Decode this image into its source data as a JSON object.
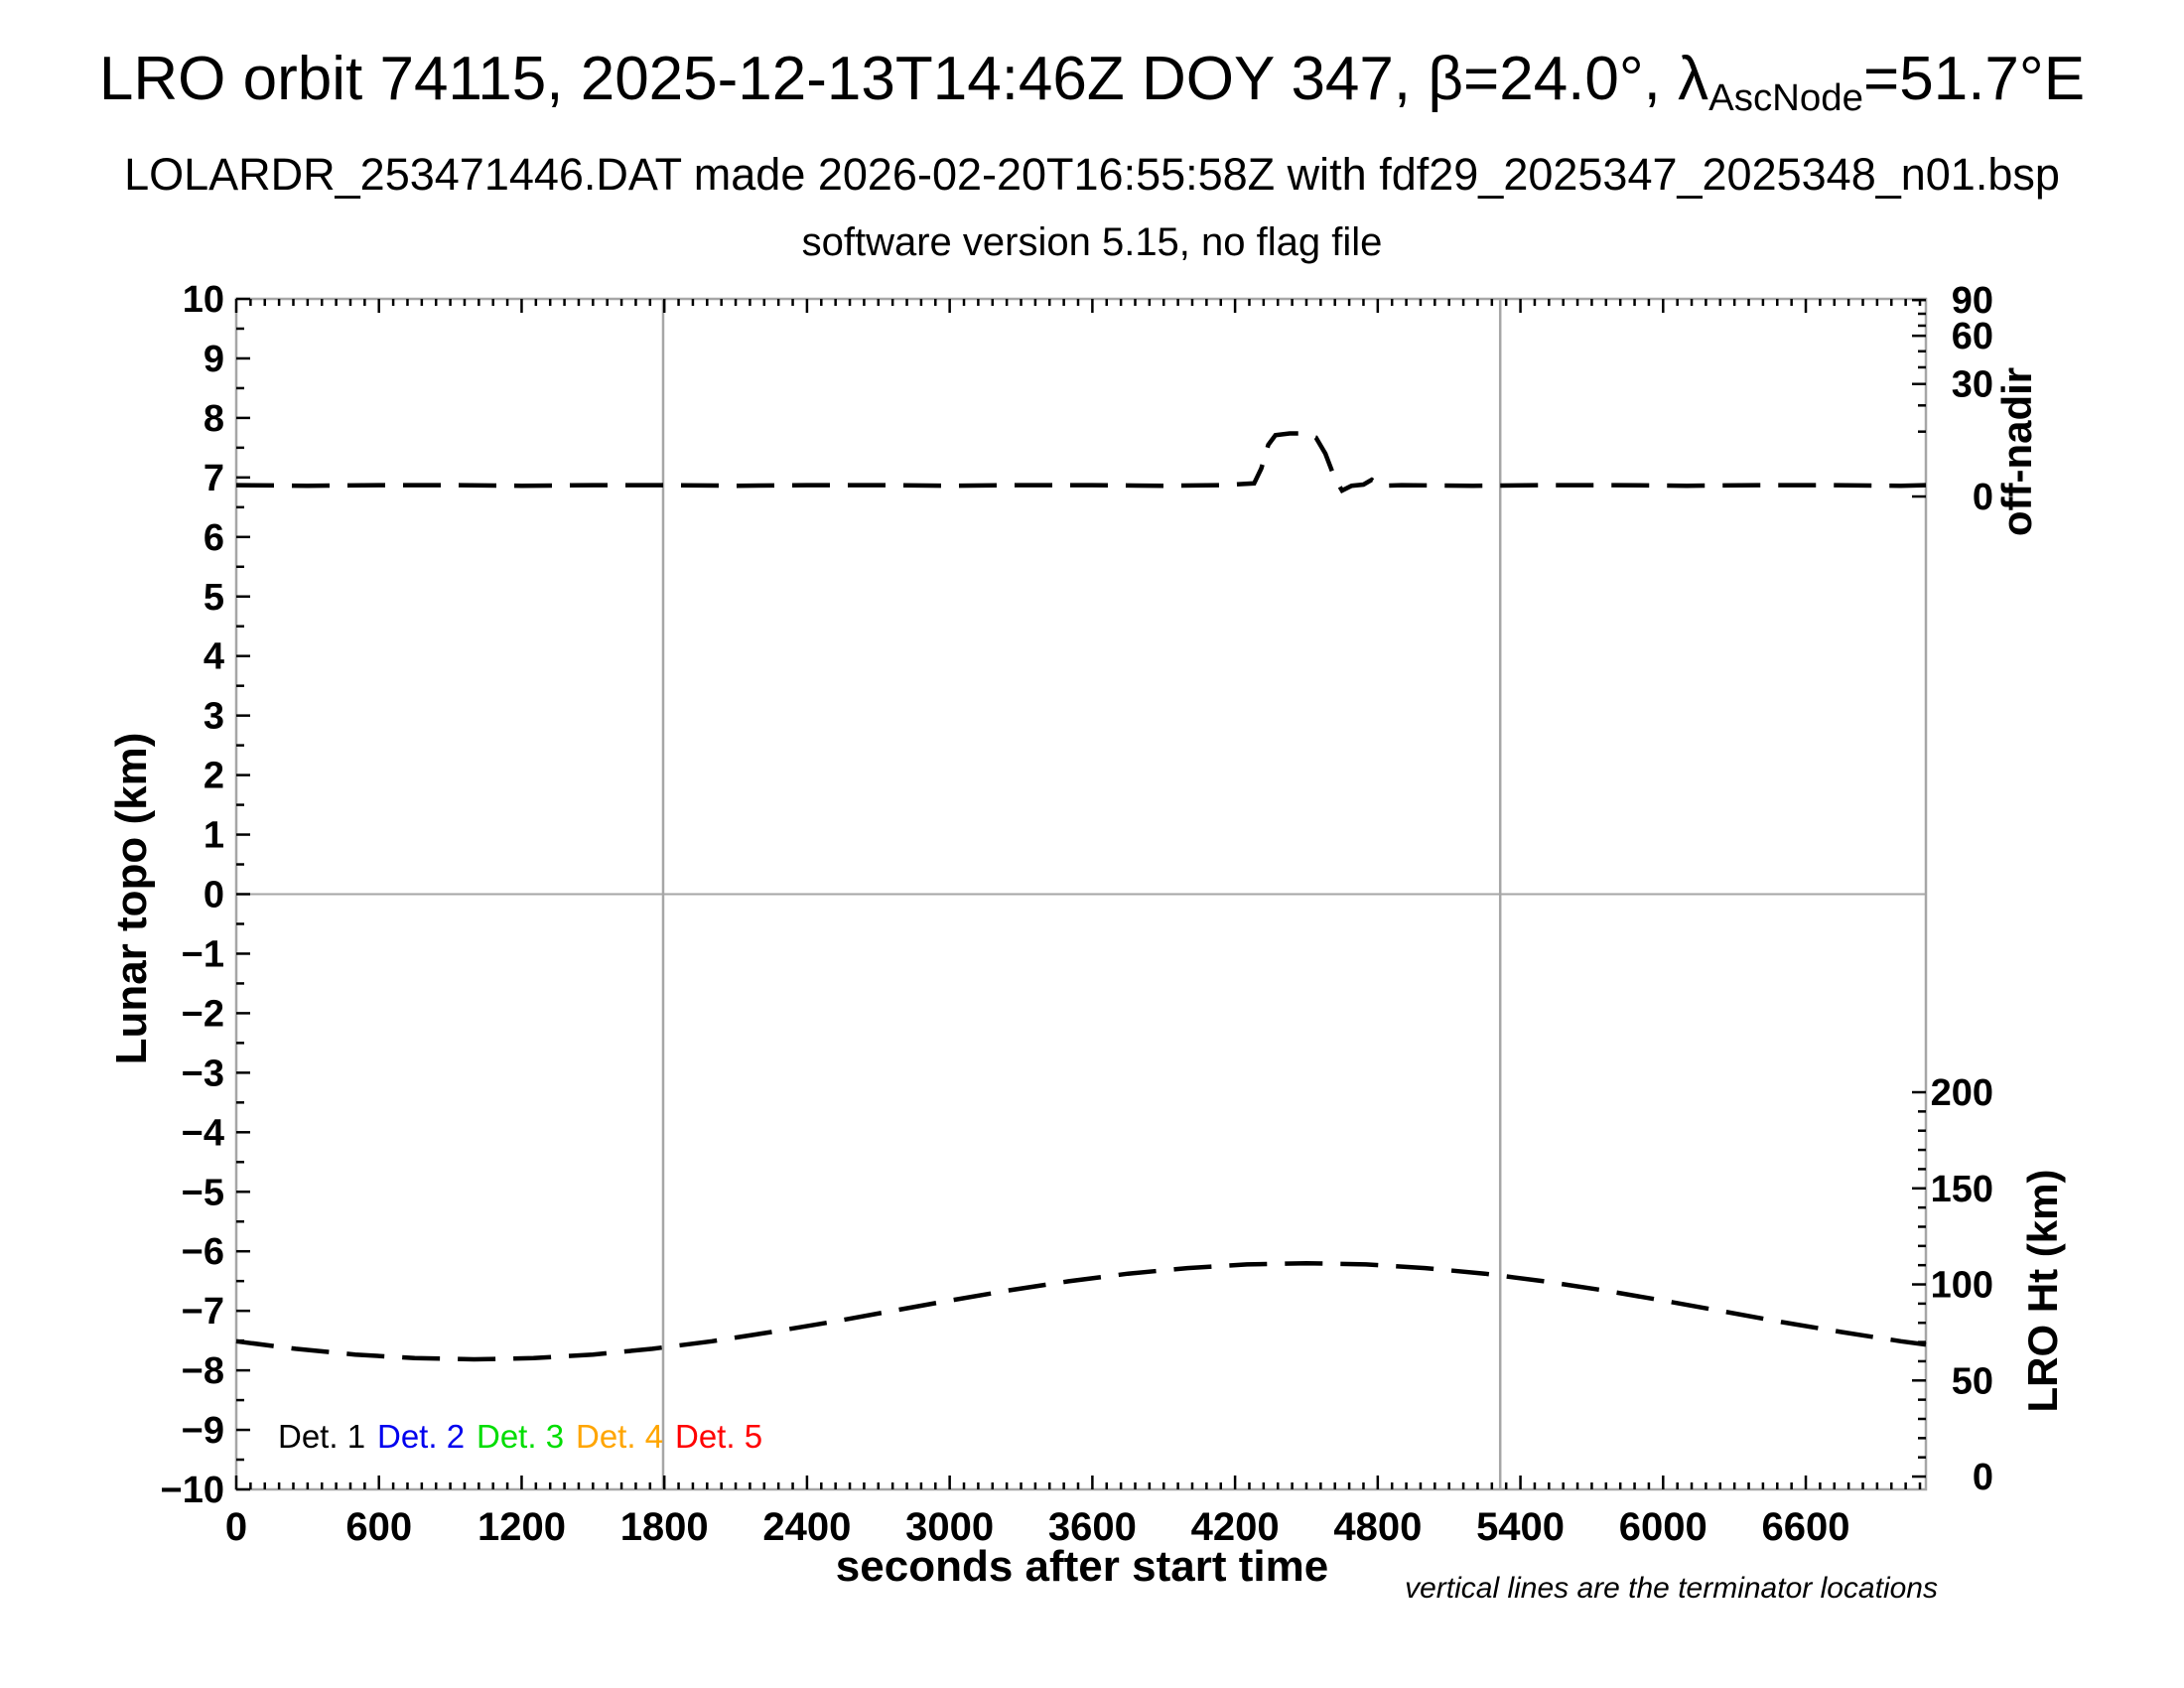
{
  "header": {
    "title_prefix": "LRO orbit 74115, 2025-12-13T14:46Z DOY 347, β=24.0°, λ",
    "title_sub": "AscNode",
    "title_suffix": "=51.7°E",
    "subtitle": "LOLARDR_253471446.DAT made 2026-02-20T16:55:58Z with fdf29_2025347_2025348_n01.bsp",
    "version_line": "software version 5.15, no flag file"
  },
  "chart_data": {
    "type": "line",
    "title": "LRO orbit 74115, 2025-12-13T14:46Z DOY 347, β=24.0°, λAscNode=51.7°E",
    "footnote": "vertical lines are the terminator locations",
    "colors": {
      "frame": "#a6a6a6",
      "curve": "#000000"
    },
    "x_axis": {
      "label": "seconds after start time",
      "range": [
        0,
        7105
      ],
      "major_ticks": [
        0,
        600,
        1200,
        1800,
        2400,
        3000,
        3600,
        4200,
        4800,
        5400,
        6000,
        6600
      ],
      "minor_tick_step": 60
    },
    "y_axis_left": {
      "label": "Lunar topo (km)",
      "range": [
        -10,
        10
      ],
      "major_tick_step": 1,
      "minor_tick_step": 0.5
    },
    "y_axis_right_top": {
      "label": "off-nadir",
      "units": "degrees",
      "scale": "nonlinear",
      "major_ticks": [
        {
          "value": 90,
          "y_topo": 9.98
        },
        {
          "value": 60,
          "y_topo": 9.38
        },
        {
          "value": 30,
          "y_topo": 8.57
        },
        {
          "value": 0,
          "y_topo": 6.68
        }
      ],
      "minor_ticks_y_topo": [
        9.75,
        9.55,
        9.12,
        8.85,
        8.21,
        7.77
      ]
    },
    "y_axis_right_bottom": {
      "label": "LRO Ht (km)",
      "major_ticks_km": [
        0,
        50,
        100,
        150,
        200
      ],
      "minor_tick_step_km": 10,
      "topo_axis_mapping": "y_topo = -9.784 + 0.03228 * km"
    },
    "gridlines": {
      "horizontal_topo": 0,
      "vertical_terminators_t": [
        1795,
        5315
      ]
    },
    "series": [
      {
        "name": "spacecraft off-nadir angle",
        "style": "dashed",
        "color": "#000000",
        "note": "flat at ~2 deg; slew to ~17 deg between t~4300 s and t~4640 s (plotted against nonlinear off-nadir axis)",
        "points_t_ytopo": [
          [
            0,
            6.87
          ],
          [
            300,
            6.86
          ],
          [
            600,
            6.87
          ],
          [
            900,
            6.87
          ],
          [
            1200,
            6.86
          ],
          [
            1500,
            6.87
          ],
          [
            1800,
            6.87
          ],
          [
            2100,
            6.86
          ],
          [
            2400,
            6.87
          ],
          [
            2700,
            6.87
          ],
          [
            3000,
            6.86
          ],
          [
            3300,
            6.87
          ],
          [
            3600,
            6.87
          ],
          [
            3900,
            6.86
          ],
          [
            4150,
            6.87
          ],
          [
            4280,
            6.9
          ],
          [
            4310,
            7.15
          ],
          [
            4340,
            7.55
          ],
          [
            4370,
            7.71
          ],
          [
            4430,
            7.74
          ],
          [
            4490,
            7.74
          ],
          [
            4540,
            7.67
          ],
          [
            4580,
            7.4
          ],
          [
            4620,
            6.98
          ],
          [
            4650,
            6.78
          ],
          [
            4690,
            6.86
          ],
          [
            4740,
            6.88
          ],
          [
            4775,
            6.96
          ],
          [
            4810,
            6.86
          ],
          [
            4900,
            6.87
          ],
          [
            5200,
            6.86
          ],
          [
            5500,
            6.87
          ],
          [
            5800,
            6.87
          ],
          [
            6100,
            6.86
          ],
          [
            6400,
            6.87
          ],
          [
            6700,
            6.87
          ],
          [
            7000,
            6.86
          ],
          [
            7105,
            6.87
          ]
        ]
      },
      {
        "name": "LRO height above surface",
        "style": "dashed",
        "color": "#000000",
        "note": "min ~61 km near t~1000 s, max ~111 km near t~4500 s",
        "points_t_km": [
          [
            0,
            70.4
          ],
          [
            250,
            66.5
          ],
          [
            500,
            63.5
          ],
          [
            750,
            61.6
          ],
          [
            1000,
            61.0
          ],
          [
            1250,
            61.6
          ],
          [
            1500,
            63.5
          ],
          [
            1750,
            66.5
          ],
          [
            2000,
            70.4
          ],
          [
            2250,
            75.2
          ],
          [
            2500,
            80.4
          ],
          [
            2750,
            86.0
          ],
          [
            3000,
            91.6
          ],
          [
            3250,
            96.9
          ],
          [
            3500,
            101.6
          ],
          [
            3750,
            105.6
          ],
          [
            4000,
            108.5
          ],
          [
            4250,
            110.4
          ],
          [
            4500,
            111.0
          ],
          [
            4750,
            110.4
          ],
          [
            5000,
            108.5
          ],
          [
            5250,
            105.6
          ],
          [
            5500,
            101.6
          ],
          [
            5750,
            96.9
          ],
          [
            6000,
            91.6
          ],
          [
            6250,
            86.0
          ],
          [
            6500,
            80.4
          ],
          [
            6750,
            75.2
          ],
          [
            7000,
            70.4
          ],
          [
            7105,
            68.7
          ]
        ]
      }
    ],
    "legend": [
      {
        "label": "Det. 1",
        "color": "#000000"
      },
      {
        "label": "Det. 2",
        "color": "#0000ee"
      },
      {
        "label": "Det. 3",
        "color": "#00dd00"
      },
      {
        "label": "Det. 4",
        "color": "#ffa500"
      },
      {
        "label": "Det. 5",
        "color": "#ff0000"
      }
    ]
  }
}
